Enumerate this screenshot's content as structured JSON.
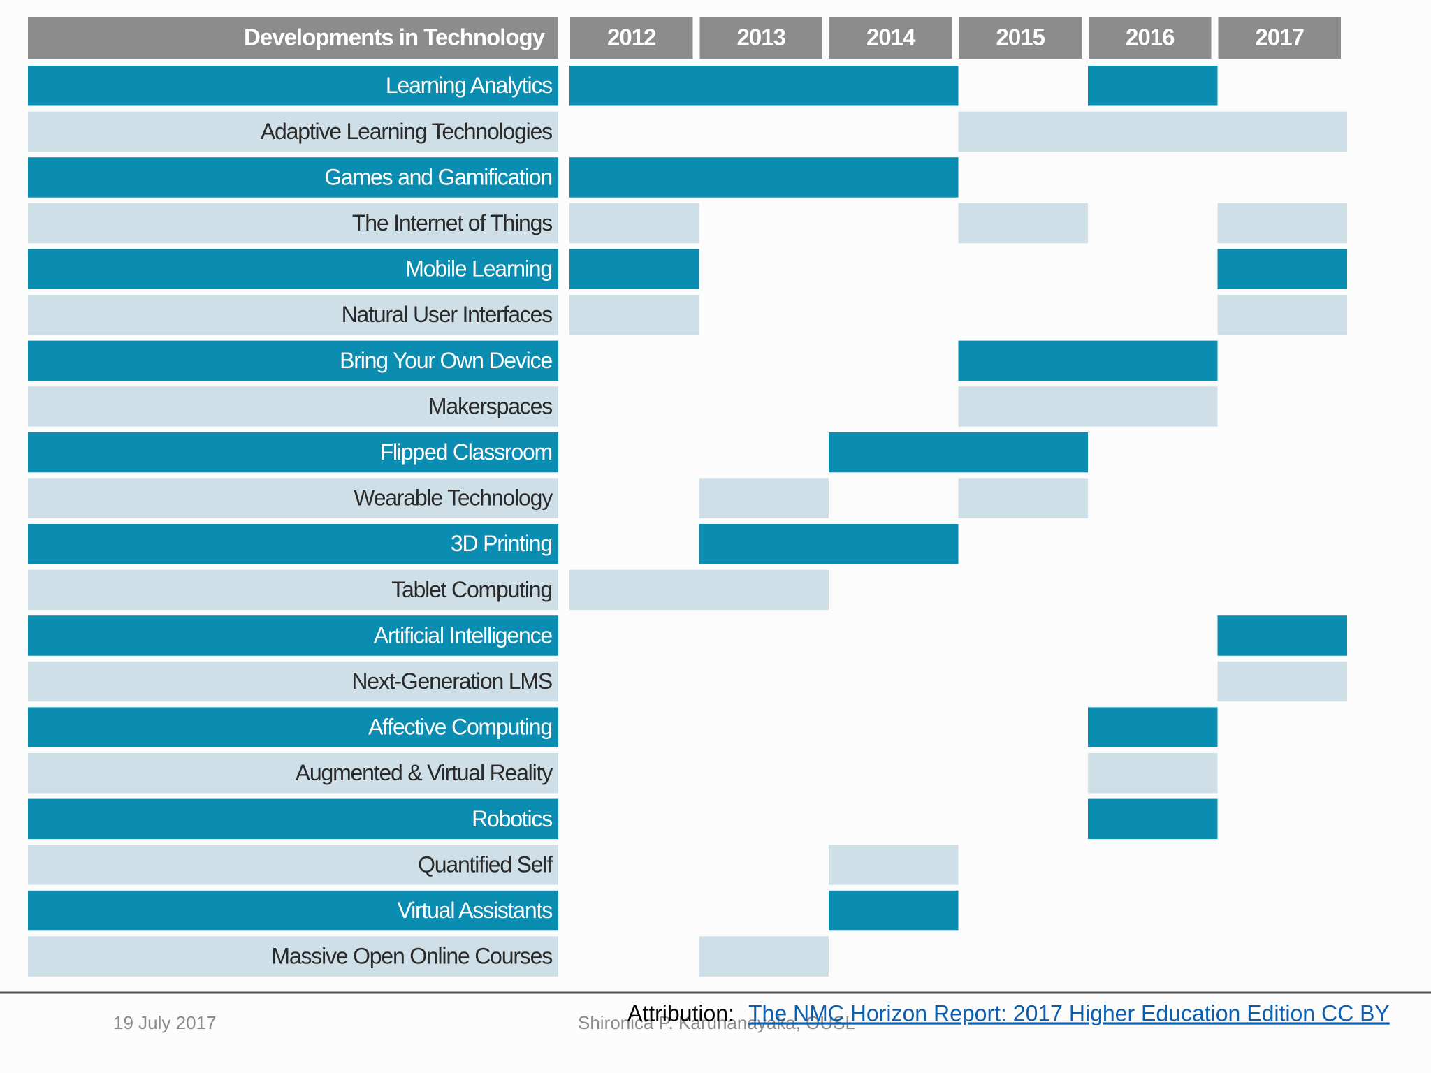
{
  "header": {
    "title": "Developments in Technology",
    "years": [
      "2012",
      "2013",
      "2014",
      "2015",
      "2016",
      "2017"
    ]
  },
  "rows": [
    {
      "label": "Learning Analytics",
      "active": [
        true,
        true,
        true,
        false,
        true,
        false
      ]
    },
    {
      "label": "Adaptive Learning Technologies",
      "active": [
        false,
        false,
        false,
        true,
        true,
        true
      ]
    },
    {
      "label": "Games and Gamification",
      "active": [
        true,
        true,
        true,
        false,
        false,
        false
      ]
    },
    {
      "label": "The Internet of Things",
      "active": [
        true,
        false,
        false,
        true,
        false,
        true
      ]
    },
    {
      "label": "Mobile Learning",
      "active": [
        true,
        false,
        false,
        false,
        false,
        true
      ]
    },
    {
      "label": "Natural User Interfaces",
      "active": [
        true,
        false,
        false,
        false,
        false,
        true
      ]
    },
    {
      "label": "Bring Your Own Device",
      "active": [
        false,
        false,
        false,
        true,
        true,
        false
      ]
    },
    {
      "label": "Makerspaces",
      "active": [
        false,
        false,
        false,
        true,
        true,
        false
      ]
    },
    {
      "label": "Flipped Classroom",
      "active": [
        false,
        false,
        true,
        true,
        false,
        false
      ]
    },
    {
      "label": "Wearable Technology",
      "active": [
        false,
        true,
        false,
        true,
        false,
        false
      ]
    },
    {
      "label": "3D Printing",
      "active": [
        false,
        true,
        true,
        false,
        false,
        false
      ]
    },
    {
      "label": "Tablet Computing",
      "active": [
        true,
        true,
        false,
        false,
        false,
        false
      ]
    },
    {
      "label": "Artificial Intelligence",
      "active": [
        false,
        false,
        false,
        false,
        false,
        true
      ]
    },
    {
      "label": "Next-Generation LMS",
      "active": [
        false,
        false,
        false,
        false,
        false,
        true
      ]
    },
    {
      "label": "Affective Computing",
      "active": [
        false,
        false,
        false,
        false,
        true,
        false
      ]
    },
    {
      "label": "Augmented & Virtual Reality",
      "active": [
        false,
        false,
        false,
        false,
        true,
        false
      ]
    },
    {
      "label": "Robotics",
      "active": [
        false,
        false,
        false,
        false,
        true,
        false
      ]
    },
    {
      "label": "Quantified Self",
      "active": [
        false,
        false,
        true,
        false,
        false,
        false
      ]
    },
    {
      "label": "Virtual Assistants",
      "active": [
        false,
        false,
        true,
        false,
        false,
        false
      ]
    },
    {
      "label": "Massive Open Online Courses",
      "active": [
        false,
        true,
        false,
        false,
        false,
        false
      ]
    }
  ],
  "footer": {
    "date": "19 July 2017",
    "author": "Shironica P. Karunanayaka, OUSL",
    "attribution_label": "Attribution:",
    "attribution_link": "The NMC Horizon Report: 2017 Higher Education Edition  CC BY"
  }
}
